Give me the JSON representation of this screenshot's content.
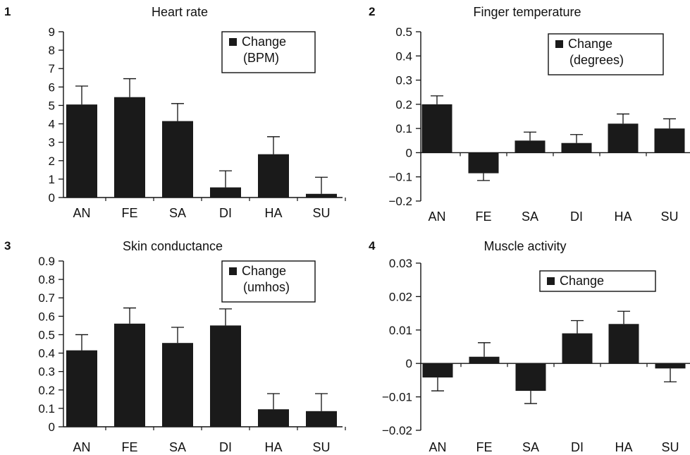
{
  "figure": {
    "colors": {
      "bar": "#1a1a1a",
      "axis": "#111111",
      "background": "#ffffff"
    }
  },
  "chart_data": [
    {
      "type": "bar",
      "panel_number": "1",
      "title": "Heart rate",
      "categories": [
        "AN",
        "FE",
        "SA",
        "DI",
        "HA",
        "SU"
      ],
      "values": [
        5.05,
        5.45,
        4.15,
        0.55,
        2.35,
        0.2
      ],
      "errors": [
        1.0,
        1.0,
        0.95,
        0.9,
        0.95,
        0.9
      ],
      "ylim": [
        0,
        9
      ],
      "yticks": [
        "0",
        "1",
        "2",
        "3",
        "4",
        "5",
        "6",
        "7",
        "8",
        "9"
      ],
      "legend": [
        "Change",
        "(BPM)"
      ],
      "legend_position": "top-right",
      "grid": false
    },
    {
      "type": "bar",
      "panel_number": "2",
      "title": "Finger temperature",
      "categories": [
        "AN",
        "FE",
        "SA",
        "DI",
        "HA",
        "SU"
      ],
      "values": [
        0.2,
        -0.085,
        0.05,
        0.04,
        0.12,
        0.1
      ],
      "errors": [
        0.035,
        0.03,
        0.035,
        0.035,
        0.04,
        0.04
      ],
      "ylim": [
        -0.2,
        0.5
      ],
      "yticks": [
        "−0.2",
        "−0.1",
        "0",
        "0.1",
        "0.2",
        "0.3",
        "0.4",
        "0.5"
      ],
      "legend": [
        "Change",
        "(degrees)"
      ],
      "legend_position": "top-right",
      "grid": false
    },
    {
      "type": "bar",
      "panel_number": "3",
      "title": "Skin conductance",
      "categories": [
        "AN",
        "FE",
        "SA",
        "DI",
        "HA",
        "SU"
      ],
      "values": [
        0.415,
        0.56,
        0.455,
        0.55,
        0.095,
        0.085
      ],
      "errors": [
        0.085,
        0.085,
        0.085,
        0.09,
        0.085,
        0.095
      ],
      "ylim": [
        0,
        0.9
      ],
      "yticks": [
        "0",
        "0.1",
        "0.2",
        "0.3",
        "0.4",
        "0.5",
        "0.6",
        "0.7",
        "0.8",
        "0.9"
      ],
      "legend": [
        "Change",
        "(umhos)"
      ],
      "legend_position": "top-right",
      "grid": false
    },
    {
      "type": "bar",
      "panel_number": "4",
      "title": "Muscle activity",
      "categories": [
        "AN",
        "FE",
        "SA",
        "DI",
        "HA",
        "SU"
      ],
      "values": [
        -0.0042,
        0.002,
        -0.0082,
        0.009,
        0.0118,
        -0.0015
      ],
      "errors": [
        0.004,
        0.0042,
        0.0038,
        0.0038,
        0.0038,
        0.004
      ],
      "ylim": [
        -0.02,
        0.03
      ],
      "yticks": [
        "−0.02",
        "−0.01",
        "0",
        "0.01",
        "0.02",
        "0.03"
      ],
      "legend": [
        "Change"
      ],
      "legend_position": "top-right",
      "grid": false
    }
  ]
}
